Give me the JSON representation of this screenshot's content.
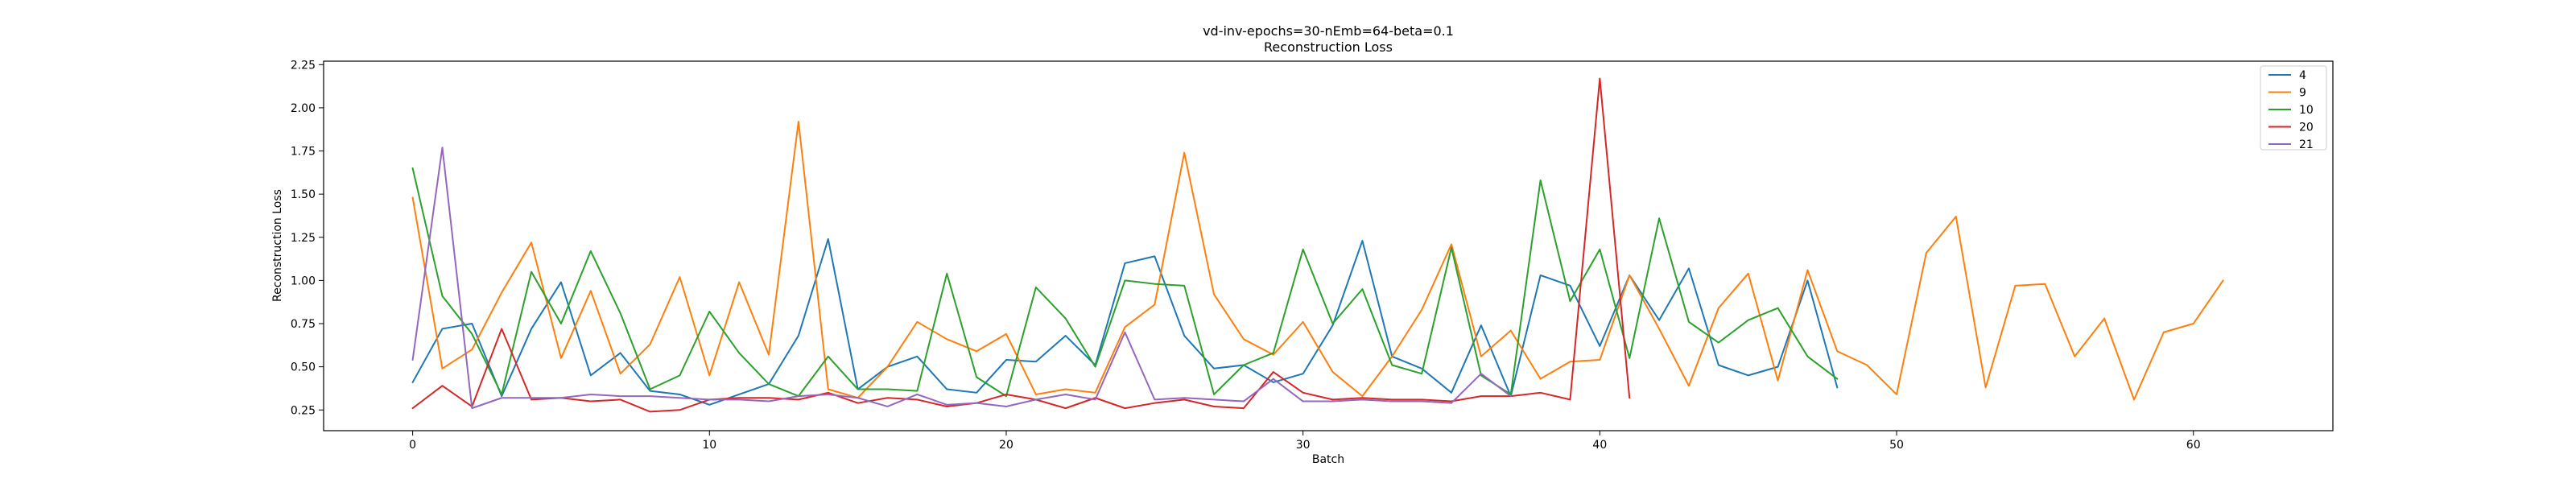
{
  "chart_data": {
    "type": "line",
    "title": "vd-inv-epochs=30-nEmb=64-beta=0.1",
    "subtitle": "Reconstruction Loss",
    "xlabel": "Batch",
    "ylabel": "Reconstruction Loss",
    "xlim": [
      -3,
      64.7
    ],
    "ylim": [
      0.13,
      2.27
    ],
    "xticks": [
      0,
      10,
      20,
      30,
      40,
      50,
      60
    ],
    "yticks": [
      0.25,
      0.5,
      0.75,
      1.0,
      1.25,
      1.5,
      1.75,
      2.0,
      2.25
    ],
    "ytick_labels": [
      "0.25",
      "0.50",
      "0.75",
      "1.00",
      "1.25",
      "1.50",
      "1.75",
      "2.00",
      "2.25"
    ],
    "grid": false,
    "legend_position": "top-right",
    "series": [
      {
        "name": "4",
        "color": "#1f77b4",
        "values": [
          0.41,
          0.72,
          0.75,
          0.33,
          0.72,
          0.99,
          0.45,
          0.58,
          0.36,
          0.34,
          0.28,
          0.34,
          0.4,
          0.68,
          1.24,
          0.37,
          0.5,
          0.56,
          0.37,
          0.35,
          0.54,
          0.53,
          0.68,
          0.51,
          1.1,
          1.14,
          0.68,
          0.49,
          0.51,
          0.41,
          0.46,
          0.74,
          1.23,
          0.56,
          0.49,
          0.35,
          0.74,
          0.33,
          1.03,
          0.97,
          0.62,
          1.03,
          0.77,
          1.07,
          0.51,
          0.45,
          0.5,
          1.0,
          0.38
        ]
      },
      {
        "name": "9",
        "color": "#ff7f0e",
        "values": [
          1.48,
          0.49,
          0.6,
          0.93,
          1.22,
          0.55,
          0.94,
          0.46,
          0.63,
          1.02,
          0.45,
          0.99,
          0.57,
          1.92,
          0.37,
          0.32,
          0.5,
          0.76,
          0.66,
          0.59,
          0.69,
          0.34,
          0.37,
          0.35,
          0.73,
          0.86,
          1.74,
          0.92,
          0.66,
          0.57,
          0.76,
          0.47,
          0.33,
          0.56,
          0.83,
          1.21,
          0.56,
          0.71,
          0.43,
          0.53,
          0.54,
          1.03,
          0.72,
          0.39,
          0.84,
          1.04,
          0.42,
          1.06,
          0.59,
          0.51,
          0.34,
          1.16,
          1.37,
          0.38,
          0.97,
          0.98,
          0.56,
          0.78,
          0.31,
          0.7,
          0.75,
          1.0
        ]
      },
      {
        "name": "10",
        "color": "#2ca02c",
        "values": [
          1.65,
          0.91,
          0.69,
          0.34,
          1.05,
          0.75,
          1.17,
          0.81,
          0.37,
          0.45,
          0.82,
          0.58,
          0.4,
          0.33,
          0.56,
          0.37,
          0.37,
          0.36,
          1.04,
          0.44,
          0.33,
          0.96,
          0.78,
          0.5,
          1.0,
          0.98,
          0.97,
          0.34,
          0.51,
          0.58,
          1.18,
          0.75,
          0.95,
          0.51,
          0.46,
          1.19,
          0.45,
          0.34,
          1.58,
          0.88,
          1.18,
          0.55,
          1.36,
          0.76,
          0.64,
          0.77,
          0.84,
          0.56,
          0.43
        ]
      },
      {
        "name": "20",
        "color": "#d62728",
        "values": [
          0.26,
          0.39,
          0.27,
          0.72,
          0.31,
          0.32,
          0.3,
          0.31,
          0.24,
          0.25,
          0.31,
          0.32,
          0.32,
          0.31,
          0.35,
          0.29,
          0.32,
          0.31,
          0.27,
          0.29,
          0.34,
          0.31,
          0.26,
          0.32,
          0.26,
          0.29,
          0.31,
          0.27,
          0.26,
          0.47,
          0.35,
          0.31,
          0.32,
          0.31,
          0.31,
          0.3,
          0.33,
          0.33,
          0.35,
          0.31,
          2.17,
          0.32
        ]
      },
      {
        "name": "21",
        "color": "#9467bd",
        "values": [
          0.54,
          1.77,
          0.26,
          0.32,
          0.32,
          0.32,
          0.34,
          0.33,
          0.33,
          0.32,
          0.31,
          0.31,
          0.3,
          0.33,
          0.34,
          0.32,
          0.27,
          0.34,
          0.28,
          0.29,
          0.27,
          0.31,
          0.34,
          0.31,
          0.7,
          0.31,
          0.32,
          0.31,
          0.3,
          0.43,
          0.3,
          0.3,
          0.31,
          0.3,
          0.3,
          0.29,
          0.46,
          0.33
        ]
      }
    ]
  }
}
